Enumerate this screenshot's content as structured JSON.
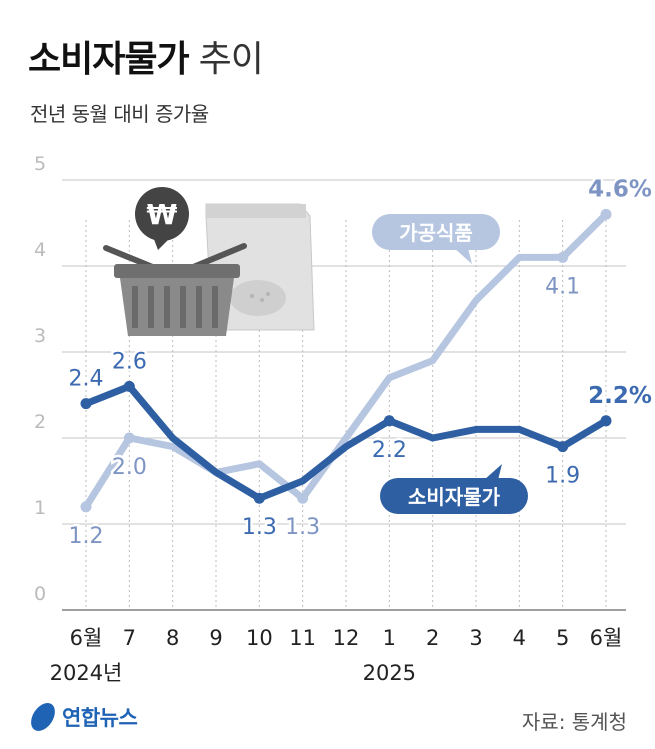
{
  "header": {
    "title_bold": "소비자물가",
    "title_light": "추이",
    "subtitle": "전년 동월 대비 증가율"
  },
  "footer": {
    "agency": "연합뉴스",
    "source": "자료: 통계청"
  },
  "colors": {
    "cpi": "#2f5fa3",
    "food": "#b6c6e1",
    "cpi_label": "#3b6ab0",
    "food_label": "#7e95c3",
    "grid": "#888888"
  },
  "icons": [
    "won-icon",
    "shopping-basket-icon",
    "food-bag-icon"
  ],
  "chart_data": {
    "type": "line",
    "title": "소비자물가 추이",
    "subtitle": "전년 동월 대비 증가율",
    "categories": [
      "6월",
      "7",
      "8",
      "9",
      "10",
      "11",
      "12",
      "1",
      "2",
      "3",
      "4",
      "5",
      "6월"
    ],
    "year_labels": [
      {
        "index": 0,
        "text": "2024년"
      },
      {
        "index": 7,
        "text": "2025"
      }
    ],
    "yticks": [
      "0",
      "1",
      "2",
      "3",
      "4",
      "5"
    ],
    "ylim": [
      0,
      5
    ],
    "grid": true,
    "series": [
      {
        "name": "소비자물가",
        "color_key": "cpi",
        "values": [
          2.4,
          2.6,
          2.0,
          1.6,
          1.3,
          1.5,
          1.9,
          2.2,
          2.0,
          2.1,
          2.1,
          1.9,
          2.2
        ],
        "labels": [
          {
            "index": 0,
            "text": "2.4",
            "pos": "above"
          },
          {
            "index": 1,
            "text": "2.6",
            "pos": "above"
          },
          {
            "index": 4,
            "text": "1.3",
            "pos": "below"
          },
          {
            "index": 7,
            "text": "2.2",
            "pos": "below"
          },
          {
            "index": 11,
            "text": "1.9",
            "pos": "below"
          },
          {
            "index": 12,
            "text": "2.2%",
            "pos": "above"
          }
        ]
      },
      {
        "name": "가공식품",
        "color_key": "food",
        "values": [
          1.2,
          2.0,
          1.9,
          1.6,
          1.7,
          1.3,
          2.0,
          2.7,
          2.9,
          3.6,
          4.1,
          4.1,
          4.6
        ],
        "labels": [
          {
            "index": 0,
            "text": "1.2",
            "pos": "below"
          },
          {
            "index": 1,
            "text": "2.0",
            "pos": "below"
          },
          {
            "index": 5,
            "text": "1.3",
            "pos": "below"
          },
          {
            "index": 11,
            "text": "4.1",
            "pos": "below"
          },
          {
            "index": 12,
            "text": "4.6%",
            "pos": "above"
          }
        ]
      }
    ]
  }
}
